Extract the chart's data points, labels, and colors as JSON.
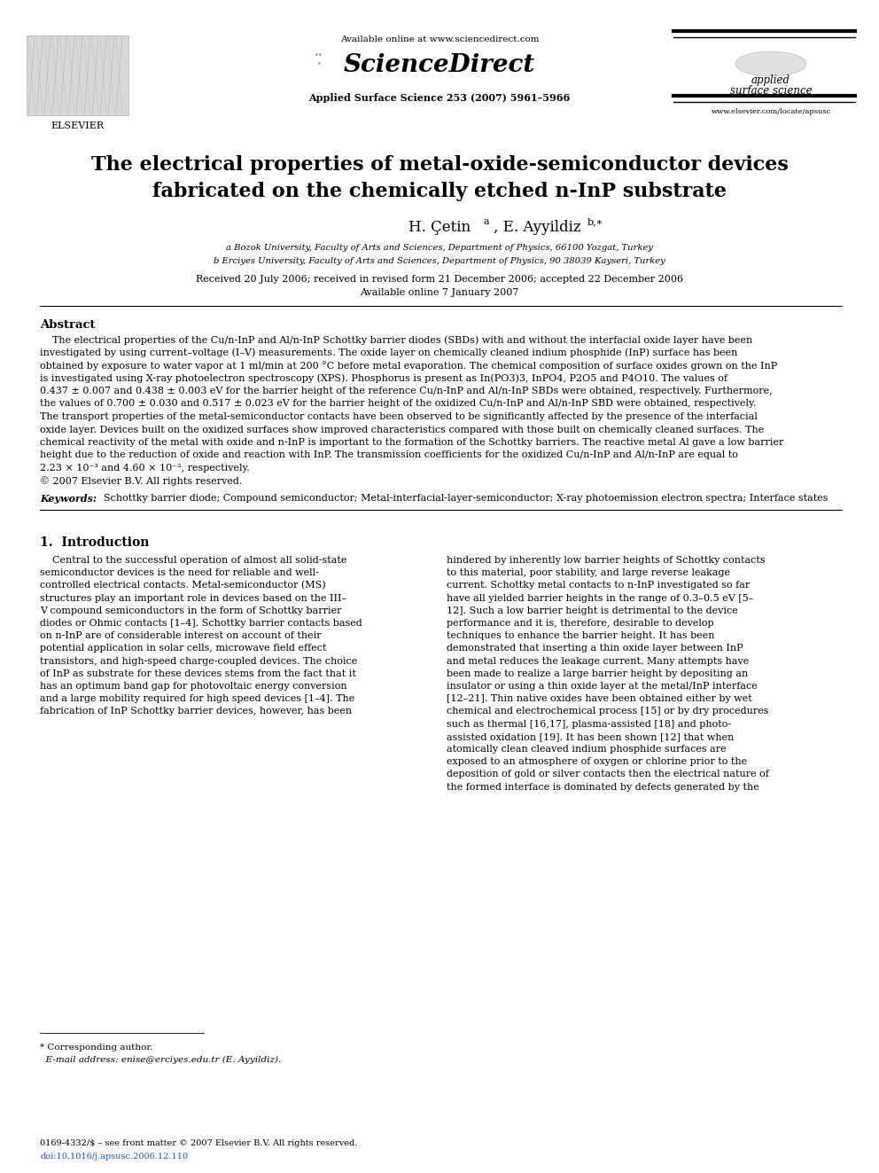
{
  "bg_color": "#ffffff",
  "title_line1": "The electrical properties of metal-oxide-semiconductor devices",
  "title_line2": "fabricated on the chemically etched n-InP substrate",
  "affil_a": "a Bozok University, Faculty of Arts and Sciences, Department of Physics, 66100 Yozgat, Turkey",
  "affil_b": "b Erciyes University, Faculty of Arts and Sciences, Department of Physics, 90 38039 Kayseri, Turkey",
  "received": "Received 20 July 2006; received in revised form 21 December 2006; accepted 22 December 2006",
  "available": "Available online 7 January 2007",
  "header_center": "Available online at www.sciencedirect.com",
  "header_journal": "Applied Surface Science 253 (2007) 5961–5966",
  "header_right1": "applied",
  "header_right2": "surface science",
  "header_right3": "www.elsevier.com/locate/apsusc",
  "abstract_title": "Abstract",
  "abstract_text1": "    The electrical properties of the Cu/n-InP and Al/n-InP Schottky barrier diodes (SBDs) with and without the interfacial oxide layer have been",
  "abstract_text2": "investigated by using current–voltage (I–V) measurements. The oxide layer on chemically cleaned indium phosphide (InP) surface has been",
  "abstract_text3": "obtained by exposure to water vapor at 1 ml/min at 200 °C before metal evaporation. The chemical composition of surface oxides grown on the InP",
  "abstract_text4": "is investigated using X-ray photoelectron spectroscopy (XPS). Phosphorus is present as In(PO3)3, InPO4, P2O5 and P4O10. The values of",
  "abstract_text5": "0.437 ± 0.007 and 0.438 ± 0.003 eV for the barrier height of the reference Cu/n-InP and Al/n-InP SBDs were obtained, respectively. Furthermore,",
  "abstract_text6": "the values of 0.700 ± 0.030 and 0.517 ± 0.023 eV for the barrier height of the oxidized Cu/n-InP and Al/n-InP SBD were obtained, respectively.",
  "abstract_text7": "The transport properties of the metal-semiconductor contacts have been observed to be significantly affected by the presence of the interfacial",
  "abstract_text8": "oxide layer. Devices built on the oxidized surfaces show improved characteristics compared with those built on chemically cleaned surfaces. The",
  "abstract_text9": "chemical reactivity of the metal with oxide and n-InP is important to the formation of the Schottky barriers. The reactive metal Al gave a low barrier",
  "abstract_text10": "height due to the reduction of oxide and reaction with InP. The transmission coefficients for the oxidized Cu/n-InP and Al/n-InP are equal to",
  "abstract_text11": "2.23 × 10⁻³ and 4.60 × 10⁻², respectively.",
  "abstract_copy": "© 2007 Elsevier B.V. All rights reserved.",
  "keywords_label": "Keywords:",
  "keywords_text": "  Schottky barrier diode; Compound semiconductor; Metal-interfacial-layer-semiconductor; X-ray photoemission electron spectra; Interface states",
  "section1_title": "1.  Introduction",
  "intro_left": [
    "    Central to the successful operation of almost all solid-state",
    "semiconductor devices is the need for reliable and well-",
    "controlled electrical contacts. Metal-semiconductor (MS)",
    "structures play an important role in devices based on the III–",
    "V compound semiconductors in the form of Schottky barrier",
    "diodes or Ohmic contacts [1–4]. Schottky barrier contacts based",
    "on n-InP are of considerable interest on account of their",
    "potential application in solar cells, microwave field effect",
    "transistors, and high-speed charge-coupled devices. The choice",
    "of InP as substrate for these devices stems from the fact that it",
    "has an optimum band gap for photovoltaic energy conversion",
    "and a large mobility required for high speed devices [1–4]. The",
    "fabrication of InP Schottky barrier devices, however, has been"
  ],
  "intro_right": [
    "hindered by inherently low barrier heights of Schottky contacts",
    "to this material, poor stability, and large reverse leakage",
    "current. Schottky metal contacts to n-InP investigated so far",
    "have all yielded barrier heights in the range of 0.3–0.5 eV [5–",
    "12]. Such a low barrier height is detrimental to the device",
    "performance and it is, therefore, desirable to develop",
    "techniques to enhance the barrier height. It has been",
    "demonstrated that inserting a thin oxide layer between InP",
    "and metal reduces the leakage current. Many attempts have",
    "been made to realize a large barrier height by depositing an",
    "insulator or using a thin oxide layer at the metal/InP interface",
    "[12–21]. Thin native oxides have been obtained either by wet",
    "chemical and electrochemical process [15] or by dry procedures",
    "such as thermal [16,17], plasma-assisted [18] and photo-",
    "assisted oxidation [19]. It has been shown [12] that when",
    "atomically clean cleaved indium phosphide surfaces are",
    "exposed to an atmosphere of oxygen or chlorine prior to the",
    "deposition of gold or silver contacts then the electrical nature of",
    "the formed interface is dominated by defects generated by the"
  ],
  "footnote_star": "* Corresponding author.",
  "footnote_email": "  E-mail address: enise@erciyes.edu.tr (E. Ayyildiz).",
  "footer_issn": "0169-4332/$ – see front matter © 2007 Elsevier B.V. All rights reserved.",
  "footer_doi": "doi:10.1016/j.apsusc.2006.12.110"
}
